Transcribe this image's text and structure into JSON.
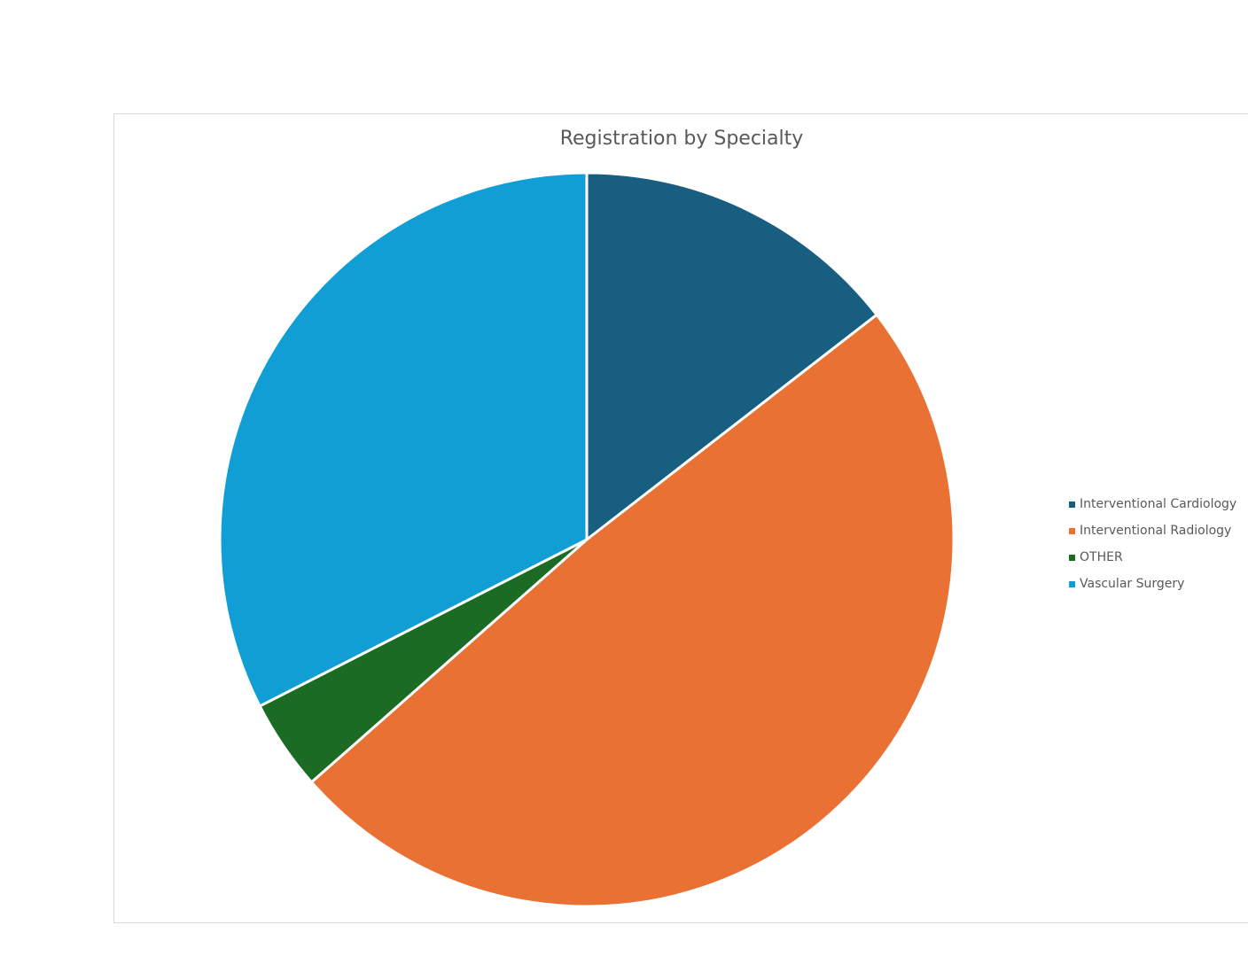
{
  "chart_data": {
    "type": "pie",
    "title": "Registration by Specialty",
    "categories": [
      "Interventional Cardiology",
      "Interventional Radiology",
      "OTHER",
      "Vascular Surgery"
    ],
    "values": [
      14.5,
      49.0,
      4.0,
      32.5
    ],
    "colors": [
      "#175e81",
      "#e87133",
      "#1b6b25",
      "#119ed5"
    ],
    "start_angle_deg": 0,
    "direction": "clockwise",
    "legend_position": "right"
  }
}
